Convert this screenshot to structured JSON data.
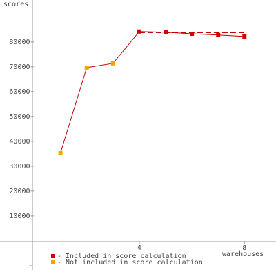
{
  "chart_data": {
    "type": "line",
    "ylabel": "scores",
    "xlabel": "warehouses",
    "xlim": [
      -1.3,
      9.2
    ],
    "ylim": [
      -14200,
      96900
    ],
    "xticks": [
      4,
      8
    ],
    "yticks": [
      10000,
      20000,
      30000,
      40000,
      50000,
      60000,
      70000,
      80000
    ],
    "line_color": "#c00000",
    "score_level": 83700,
    "series": [
      {
        "name": "- Included in score calculation",
        "color": "#d00000",
        "x": [
          4,
          5,
          6,
          7,
          8
        ],
        "values": [
          84200,
          83900,
          83300,
          82800,
          82200
        ]
      },
      {
        "name": "- Not included in score calculation",
        "color": "#f0a800",
        "x": [
          1,
          2,
          3
        ],
        "values": [
          35300,
          69700,
          71400
        ]
      }
    ]
  }
}
